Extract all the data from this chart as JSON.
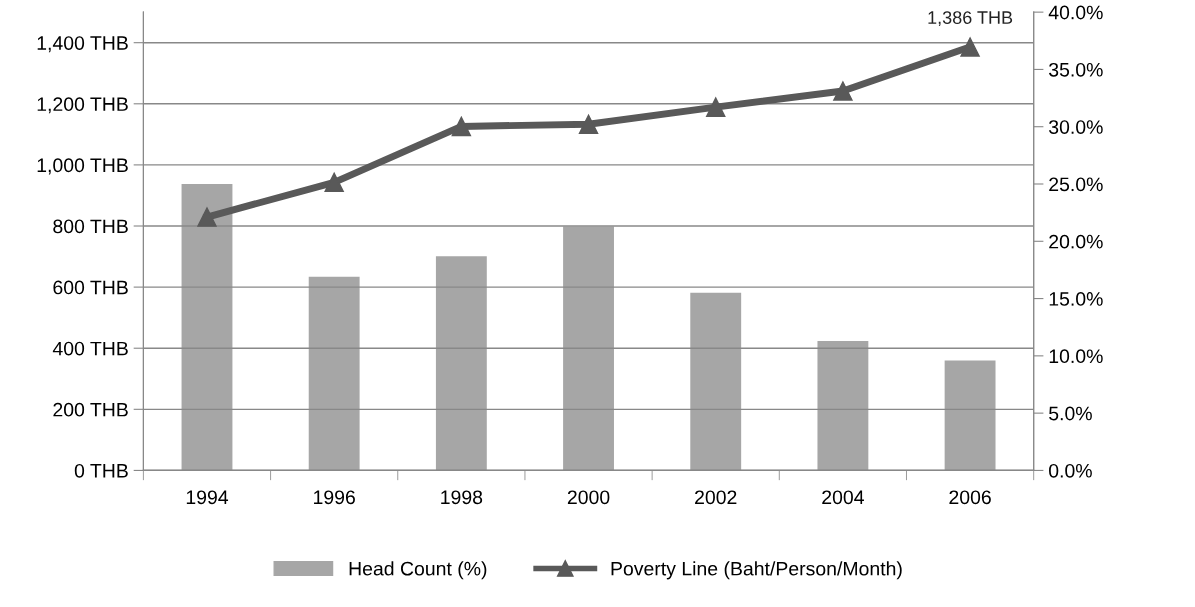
{
  "chart_data": {
    "type": "bar",
    "categories": [
      "1994",
      "1996",
      "1998",
      "2000",
      "2002",
      "2004",
      "2006"
    ],
    "series": [
      {
        "name": "Head Count (%)",
        "axis": "y2",
        "color": "#a6a6a6",
        "values": [
          25.0,
          16.9,
          18.7,
          21.3,
          15.5,
          11.3,
          9.6
        ]
      },
      {
        "name": "Poverty Line (Baht/Person/Month)",
        "type": "line",
        "axis": "y",
        "color": "#595959",
        "marker": "triangle",
        "values": [
          829,
          943,
          1126,
          1133,
          1189,
          1242,
          1386
        ],
        "value_labels": [
          null,
          null,
          null,
          null,
          null,
          null,
          "1,386 THB"
        ]
      }
    ],
    "ylim": [
      0,
      1500
    ],
    "yticks": [
      {
        "value": 0,
        "label": "0 THB"
      },
      {
        "value": 200,
        "label": "200 THB"
      },
      {
        "value": 400,
        "label": "400 THB"
      },
      {
        "value": 600,
        "label": "600 THB"
      },
      {
        "value": 800,
        "label": "800 THB"
      },
      {
        "value": 1000,
        "label": "1,000 THB"
      },
      {
        "value": 1200,
        "label": "1,200 THB"
      },
      {
        "value": 1400,
        "label": "1,400 THB"
      }
    ],
    "y2lim": [
      0,
      40
    ],
    "y2ticks": [
      {
        "value": 0,
        "label": "0.0%"
      },
      {
        "value": 5,
        "label": "5.0%"
      },
      {
        "value": 10,
        "label": "10.0%"
      },
      {
        "value": 15,
        "label": "15.0%"
      },
      {
        "value": 20,
        "label": "20.0%"
      },
      {
        "value": 25,
        "label": "25.0%"
      },
      {
        "value": 30,
        "label": "30.0%"
      },
      {
        "value": 35,
        "label": "35.0%"
      },
      {
        "value": 40,
        "label": "40.0%"
      }
    ],
    "grid": "y",
    "legend": "bottom"
  }
}
